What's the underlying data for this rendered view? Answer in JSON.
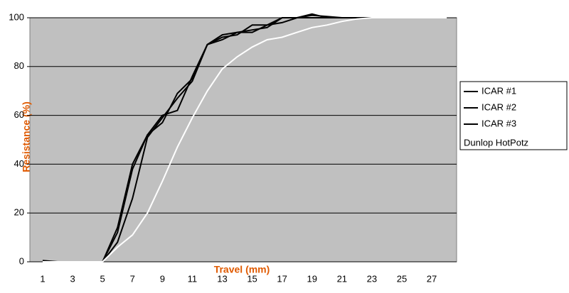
{
  "chart_data": {
    "type": "line",
    "x_label": "Travel (mm)",
    "y_label": "Resistance (%)",
    "categories": [
      1,
      null,
      3,
      null,
      5,
      null,
      7,
      null,
      9,
      null,
      11,
      null,
      13,
      null,
      15,
      null,
      17,
      null,
      19,
      null,
      21,
      null,
      23,
      null,
      25,
      null,
      27,
      null
    ],
    "series": [
      {
        "name": "ICAR #1",
        "color": "#000000",
        "values": [
          0.5,
          0,
          0,
          0,
          0,
          14,
          40,
          52,
          57,
          69,
          75,
          89,
          92,
          93,
          97,
          97,
          100,
          100,
          101,
          100.5,
          100,
          100,
          100,
          null,
          null,
          null,
          null,
          null
        ]
      },
      {
        "name": "ICAR #2",
        "color": "#000000",
        "values": [
          0,
          0,
          0,
          0,
          0,
          12,
          38,
          52,
          60,
          62,
          76,
          89,
          91,
          94,
          94,
          97,
          98,
          100,
          101.5,
          100,
          100,
          100,
          100,
          100,
          null,
          null,
          null,
          null
        ]
      },
      {
        "name": "ICAR #3",
        "color": "#000000",
        "values": [
          0,
          0,
          0,
          0,
          0,
          8,
          26,
          51,
          59,
          67,
          74,
          89,
          93,
          94,
          95,
          96,
          100,
          100,
          100,
          100,
          100,
          100,
          100,
          null,
          null,
          null,
          null,
          null
        ]
      },
      {
        "name": "Dunlop HotPotz",
        "color": "#ffffff",
        "values": [
          0,
          0,
          0,
          0,
          0,
          6,
          11,
          20,
          33,
          47,
          59,
          70,
          79,
          84,
          88,
          91,
          92,
          94,
          96,
          97,
          98.5,
          99.5,
          100,
          100,
          100,
          100,
          100,
          100
        ]
      }
    ],
    "ylim": [
      0,
      100
    ],
    "yticks": [
      0,
      20,
      40,
      60,
      80,
      100
    ],
    "grid": true,
    "legend": "right",
    "plot_background": "#c0c0c0"
  }
}
